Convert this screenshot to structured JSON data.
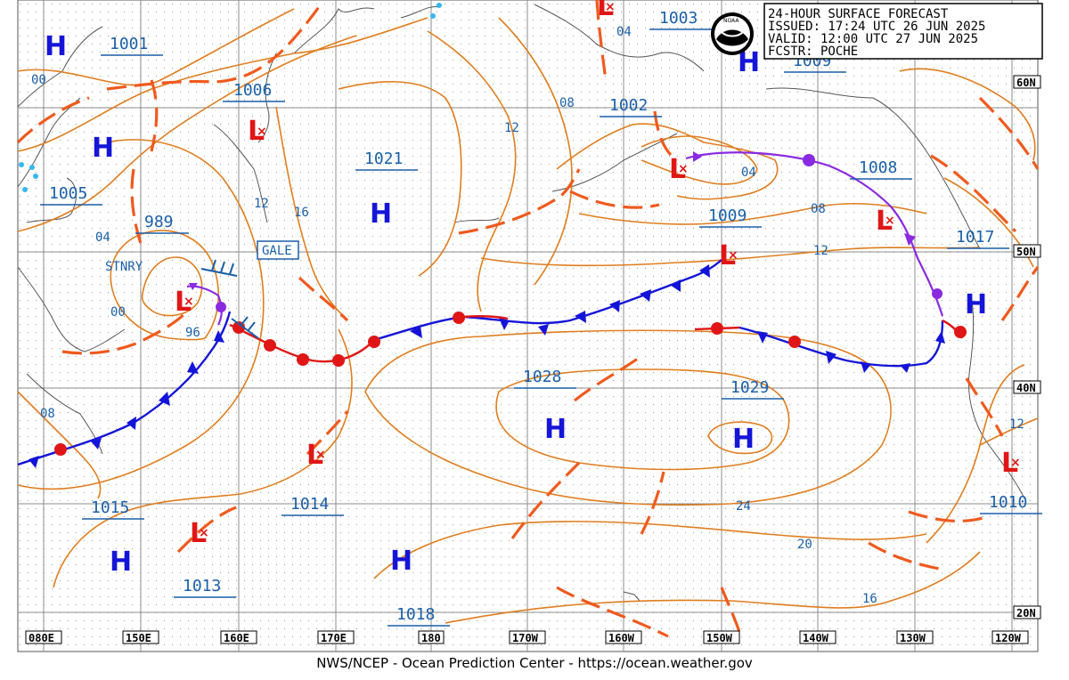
{
  "header": {
    "title": "24-HOUR SURFACE FORECAST",
    "issued": "ISSUED: 17:24 UTC 26 JUN 2025",
    "valid": "VALID:  12:00 UTC 27 JUN 2025",
    "forecaster": "FCSTR:  POCHE"
  },
  "logo_text": "NOAA",
  "footer": "NWS/NCEP - Ocean Prediction Center - https://ocean.weather.gov",
  "lon_ticks": [
    "080E",
    "150E",
    "160E",
    "170E",
    "180",
    "170W",
    "160W",
    "150W",
    "140W",
    "130W",
    "120W"
  ],
  "lat_ticks": [
    "60N",
    "50N",
    "40N",
    "20N"
  ],
  "pressure_boxes": [
    "1001",
    "1006",
    "1005",
    "989",
    "1021",
    "1003",
    "1009",
    "1002",
    "1008",
    "1009",
    "1017",
    "1028",
    "1029",
    "1015",
    "1014",
    "1010",
    "1013",
    "1018"
  ],
  "isobar_labels": [
    "00",
    "04",
    "00",
    "96",
    "08",
    "12",
    "16",
    "12",
    "08",
    "04",
    "08",
    "12",
    "04",
    "24",
    "20",
    "16",
    "12"
  ],
  "highs": [
    "H",
    "H",
    "H",
    "H",
    "H",
    "H",
    "H",
    "H",
    "H"
  ],
  "lows": [
    "L",
    "L",
    "L",
    "L",
    "L",
    "L",
    "L",
    "L",
    "L"
  ],
  "warnings": {
    "gale": "GALE",
    "stationary": "STNRY"
  },
  "colors": {
    "isobar": "#e07d1e",
    "cold_front": "#1414d8",
    "warm_front": "#e01616",
    "occluded_front": "#8a2be2",
    "trough": "#f05a1e",
    "high": "#1515d8",
    "low": "#e01616",
    "label": "#1a5fa8"
  }
}
